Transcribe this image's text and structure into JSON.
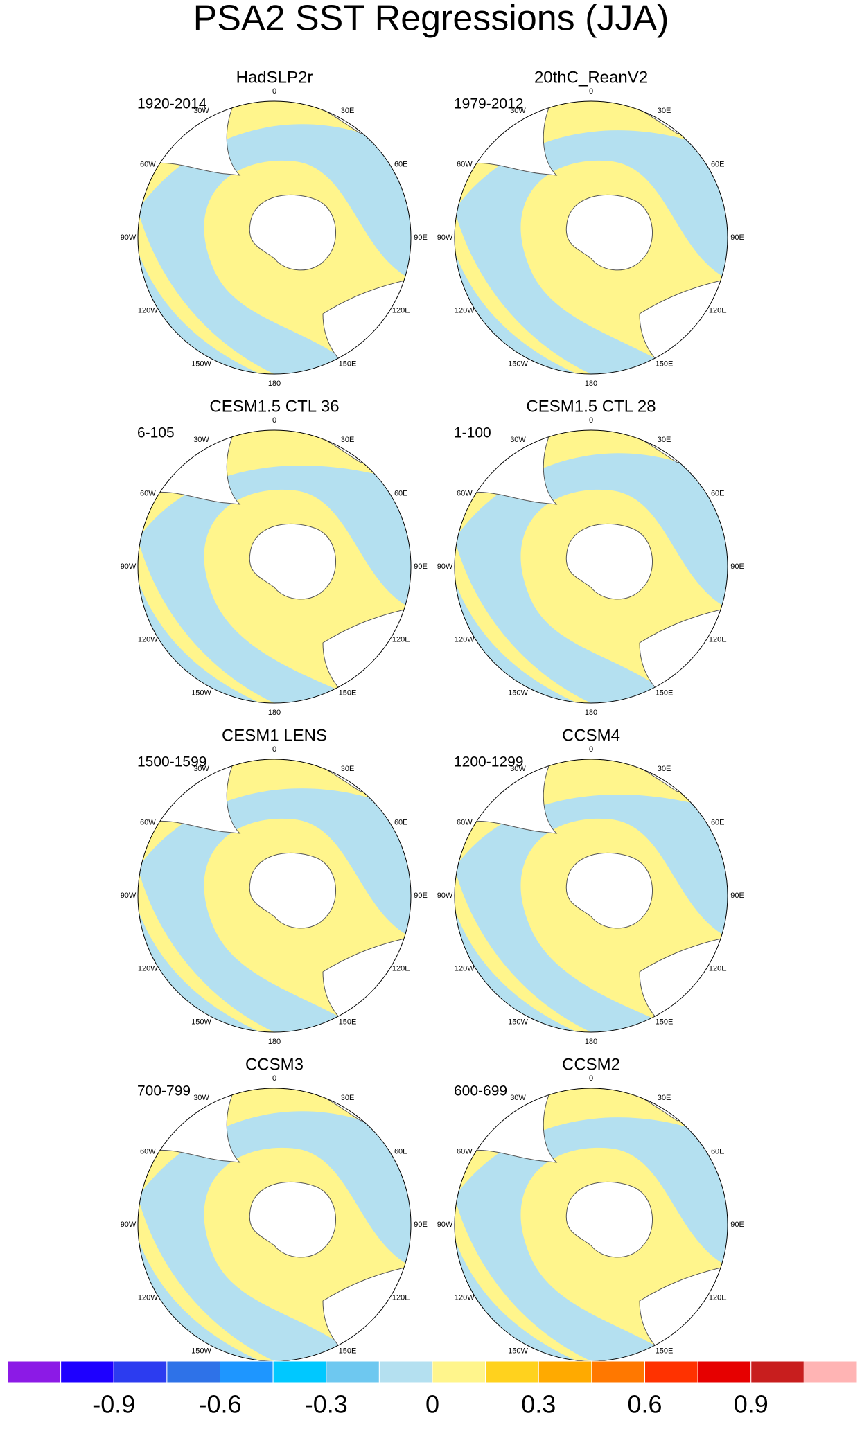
{
  "title": "PSA2 SST Regressions (JJA)",
  "panels": [
    {
      "title": "HadSLP2r",
      "period": "1920-2014"
    },
    {
      "title": "20thC_ReanV2",
      "period": "1979-2012"
    },
    {
      "title": "CESM1.5 CTL 36",
      "period": "6-105"
    },
    {
      "title": "CESM1.5 CTL 28",
      "period": "1-100"
    },
    {
      "title": "CESM1 LENS",
      "period": "1500-1599"
    },
    {
      "title": "CCSM4",
      "period": "1200-1299"
    },
    {
      "title": "CCSM3",
      "period": "700-799"
    },
    {
      "title": "CCSM2",
      "period": "600-699"
    }
  ],
  "lon_labels": [
    "0",
    "30E",
    "60E",
    "90E",
    "120E",
    "150E",
    "180",
    "150W",
    "120W",
    "90W",
    "60W",
    "30W"
  ],
  "colorbar": {
    "colors": [
      "#8c1ae6",
      "#1e00ff",
      "#2c3cf0",
      "#2e72e8",
      "#1e96ff",
      "#00c8ff",
      "#6ec8f0",
      "#b4e0f0",
      "#fff58c",
      "#ffd21e",
      "#ffaa00",
      "#ff7800",
      "#ff3200",
      "#e60000",
      "#c81e1e",
      "#ffb4b4"
    ],
    "xlim": [
      -1.2,
      1.2
    ],
    "xticks": [
      -0.9,
      -0.6,
      -0.3,
      0,
      0.3,
      0.6,
      0.9
    ]
  }
}
